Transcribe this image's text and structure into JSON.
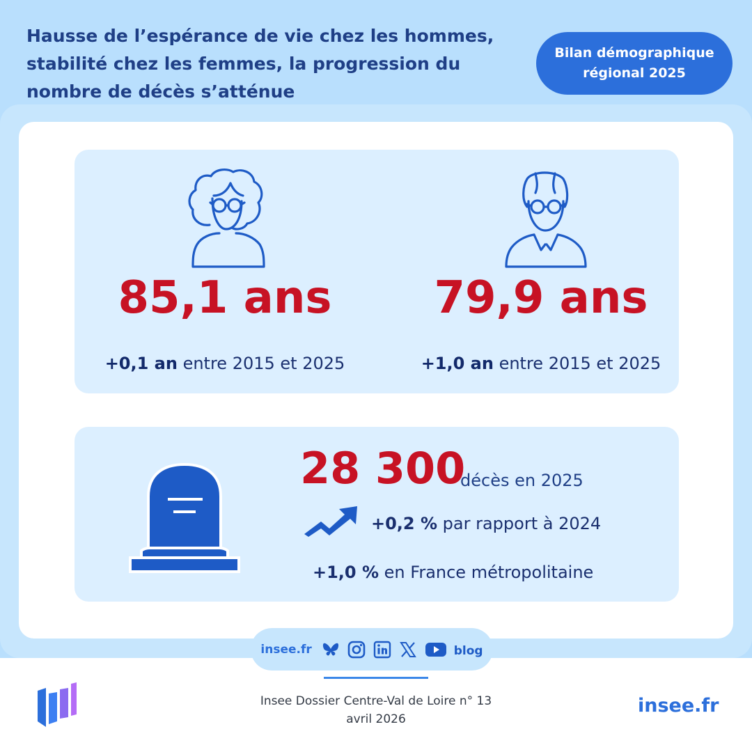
{
  "header": {
    "title_lines": [
      "Hausse de l’espérance de vie chez les hommes,",
      "stabilité chez les femmes, la progression du",
      "nombre de décès s’atténue"
    ],
    "badge_lines": [
      "Bilan démographique",
      "régional 2025"
    ]
  },
  "life_expectancy": {
    "women": {
      "icon": "elderly-woman-icon",
      "value": "85,1 ans",
      "change_bold": "+0,1 an",
      "change_text": " entre 2015 et 2025"
    },
    "men": {
      "icon": "elderly-man-icon",
      "value": "79,9 ans",
      "change_bold": "+1,0 an",
      "change_text": " entre 2015 et 2025"
    }
  },
  "deaths": {
    "icon": "tombstone-icon",
    "value": "28 300",
    "unit": "décès en 2025",
    "trend_icon": "trend-up-arrow-icon",
    "change_bold": "+0,2 %",
    "change_text": " par rapport à 2024",
    "national_bold": "+1,0 %",
    "national_text": " en France métropolitaine"
  },
  "social": {
    "site": "insee.fr",
    "icons": [
      "bluesky-icon",
      "instagram-icon",
      "linkedin-icon",
      "x-icon",
      "youtube-icon",
      "blog-icon"
    ],
    "blog_label": "blog"
  },
  "footer": {
    "publication": "Insee Dossier Centre-Val de Loire n° 13",
    "date": "avril 2026",
    "site": "insee.fr",
    "logo": "insee-logo-icon"
  },
  "colors": {
    "background": "#b9dffd",
    "accent_red": "#c71224",
    "navy": "#1f3f86",
    "blue": "#2c6fdb",
    "panel": "#dcefff"
  }
}
